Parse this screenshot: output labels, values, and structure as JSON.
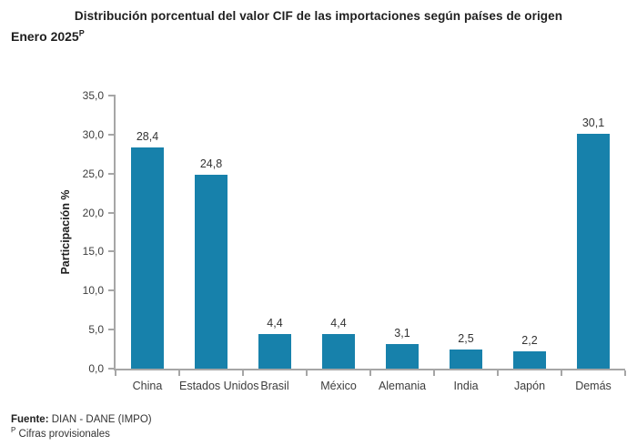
{
  "title": {
    "line1": "Distribución porcentual del valor CIF de las importaciones según países de origen",
    "line2": "Enero 2025",
    "superscript": "P"
  },
  "footer": {
    "source_label": "Fuente:",
    "source_text": " DIAN - DANE (IMPO)",
    "note_superscript": "P",
    "note_text": " Cifras provisionales"
  },
  "chart_data": {
    "type": "bar",
    "title": "Distribución porcentual del valor CIF de las importaciones según países de origen Enero 2025P",
    "categories": [
      "China",
      "Estados Unidos",
      "Brasil",
      "México",
      "Alemania",
      "India",
      "Japón",
      "Demás"
    ],
    "values": [
      28.4,
      24.8,
      4.4,
      4.4,
      3.1,
      2.5,
      2.2,
      30.1
    ],
    "value_labels": [
      "28,4",
      "24,8",
      "4,4",
      "4,4",
      "3,1",
      "2,5",
      "2,2",
      "30,1"
    ],
    "xlabel": "",
    "ylabel": "Participación %",
    "ylim": [
      0,
      35
    ],
    "ytick_step": 5,
    "ytick_labels": [
      "0,0",
      "5,0",
      "10,0",
      "15,0",
      "20,0",
      "25,0",
      "30,0",
      "35,0"
    ],
    "grid": false,
    "legend": "none",
    "bar_color": "#1781ab",
    "axis_color": "#a6a6a6",
    "text_color": "#3d3d3d"
  }
}
